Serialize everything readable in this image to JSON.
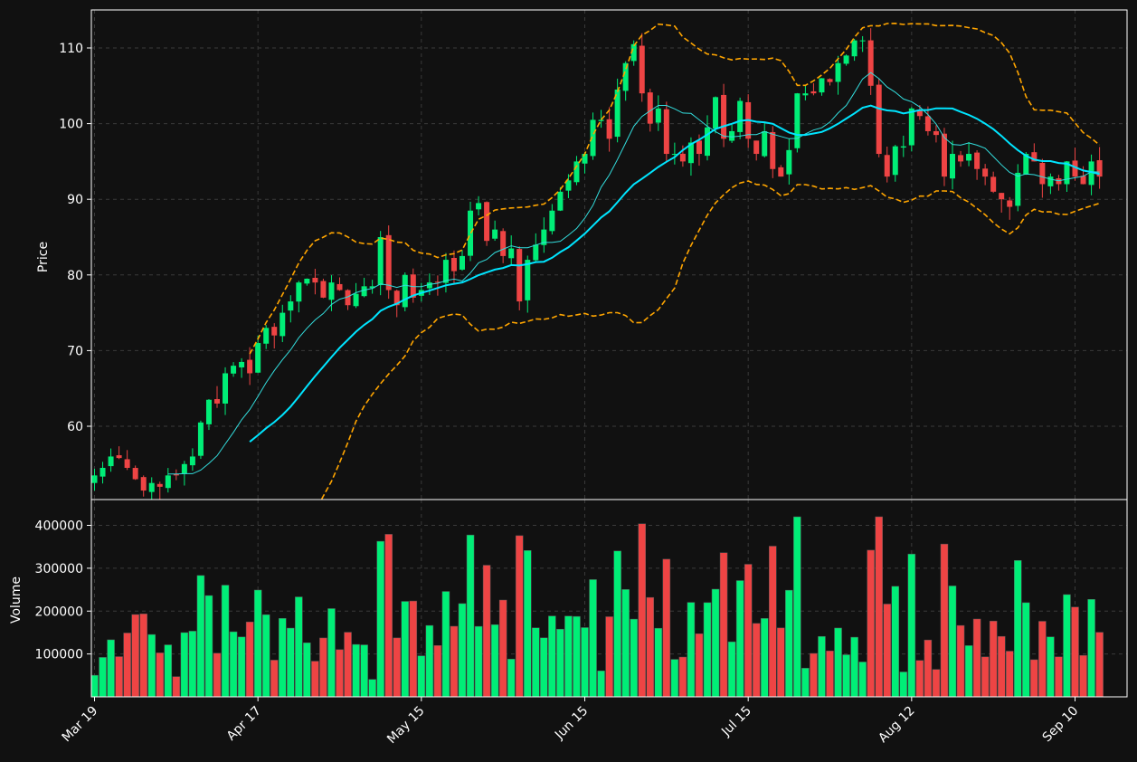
{
  "chart_data": {
    "type": "candlestick",
    "price_panel": {
      "ylabel": "Price",
      "ylim": [
        50,
        115
      ],
      "yticks": [
        60,
        70,
        80,
        90,
        100,
        110
      ],
      "grid": true
    },
    "volume_panel": {
      "ylabel": "Volume",
      "ylim": [
        0,
        450000
      ],
      "yticks": [
        100000,
        200000,
        300000,
        400000
      ],
      "grid": true
    },
    "x_axis": {
      "tick_labels": [
        "Mar 19",
        "Apr 17",
        "May 15",
        "Jun 15",
        "Jul 15",
        "Aug 12",
        "Sep 10"
      ],
      "tick_index": [
        0,
        20,
        40,
        60,
        80,
        100,
        120
      ]
    },
    "colors": {
      "background": "#111111",
      "up": "#00ee77",
      "down": "#ee4444",
      "ma_fast": "#33dddd",
      "ma_slow": "#00e5ff",
      "bands": "#ffa500",
      "grid": "#3a3a3a",
      "frame": "#ffffff"
    },
    "close": [
      53.5,
      54.5,
      56,
      55.8,
      54.5,
      53,
      51.5,
      52.5,
      52,
      53.5,
      53.5,
      55,
      56,
      60.5,
      63.5,
      63,
      67,
      68,
      68.5,
      67,
      71,
      73,
      72,
      75,
      76.5,
      79,
      79.5,
      79,
      77,
      79,
      78,
      76,
      77.5,
      78.5,
      78.5,
      85,
      78,
      76,
      80,
      77,
      78,
      79,
      79,
      82,
      80.5,
      82.5,
      88.5,
      89.5,
      84.5,
      86,
      82.5,
      83.5,
      76.5,
      82,
      84,
      86,
      88.5,
      91,
      92.5,
      95,
      96,
      100.5,
      100.5,
      98,
      104.5,
      108,
      110.5,
      104,
      100,
      102,
      96,
      96,
      95,
      97.5,
      96,
      99.5,
      103.5,
      98,
      99,
      103,
      98,
      96,
      99,
      94,
      93,
      96.5,
      104,
      104,
      104,
      106,
      105.5,
      108,
      109,
      111,
      111,
      105,
      96,
      93,
      97,
      97,
      102,
      101,
      99,
      98.5,
      93,
      96,
      95,
      96,
      94,
      93,
      91,
      90,
      89,
      93.5,
      96,
      95,
      92,
      93,
      92,
      95,
      93,
      92,
      95,
      93
    ]
  }
}
